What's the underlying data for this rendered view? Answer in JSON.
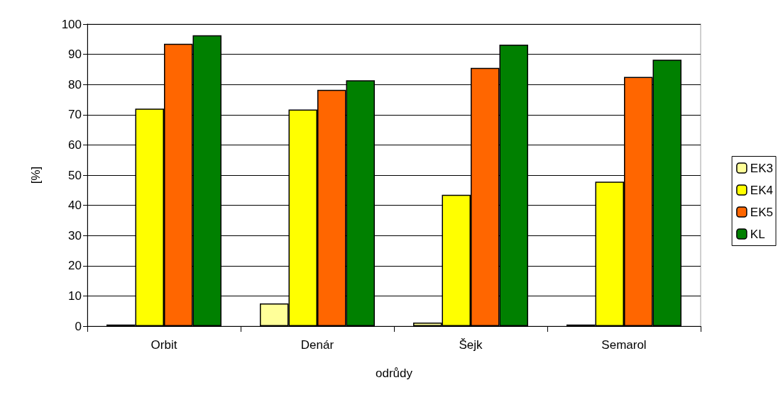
{
  "chart_data": {
    "type": "bar",
    "xlabel": "odrůdy",
    "ylabel": "[%]",
    "categories": [
      "Orbit",
      "Denár",
      "Šejk",
      "Semarol"
    ],
    "series": [
      {
        "name": "EK3",
        "color": "#ffff99",
        "values": [
          0.5,
          7.5,
          1.2,
          0.5
        ]
      },
      {
        "name": "EK4",
        "color": "#ffff00",
        "values": [
          72,
          71.7,
          43.5,
          47.8
        ]
      },
      {
        "name": "EK5",
        "color": "#ff6600",
        "values": [
          93.5,
          78.2,
          85.5,
          82.5
        ]
      },
      {
        "name": "KL",
        "color": "#008000",
        "values": [
          96.3,
          81.4,
          93.2,
          88.2
        ]
      }
    ],
    "ylim": [
      0,
      100
    ],
    "yticks": [
      0,
      10,
      20,
      30,
      40,
      50,
      60,
      70,
      80,
      90,
      100
    ],
    "grid": "y",
    "legend": "right"
  }
}
